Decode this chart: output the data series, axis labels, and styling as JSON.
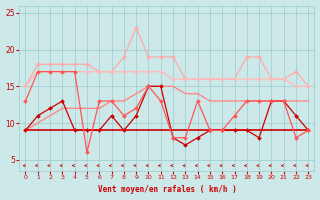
{
  "x": [
    0,
    1,
    2,
    3,
    4,
    5,
    6,
    7,
    8,
    9,
    10,
    11,
    12,
    13,
    14,
    15,
    16,
    17,
    18,
    19,
    20,
    21,
    22,
    23
  ],
  "series": [
    {
      "y": [
        15,
        18,
        18,
        18,
        18,
        18,
        17,
        17,
        19,
        23,
        19,
        19,
        19,
        16,
        16,
        16,
        16,
        16,
        19,
        19,
        16,
        16,
        17,
        15
      ],
      "color": "#ffaaaa",
      "lw": 0.9,
      "marker": "D",
      "ms": 2.0
    },
    {
      "y": [
        15,
        17,
        17,
        17,
        17,
        17,
        17,
        17,
        17,
        17,
        17,
        17,
        16,
        16,
        16,
        16,
        16,
        16,
        16,
        16,
        16,
        16,
        15,
        15
      ],
      "color": "#ffbbbb",
      "lw": 0.9,
      "marker": "D",
      "ms": 2.0
    },
    {
      "y": [
        9,
        10,
        11,
        12,
        12,
        12,
        12,
        13,
        13,
        14,
        15,
        15,
        15,
        14,
        14,
        13,
        13,
        13,
        13,
        13,
        13,
        13,
        13,
        13
      ],
      "color": "#ff8888",
      "lw": 1.0,
      "marker": null,
      "ms": 0
    },
    {
      "y": [
        9,
        9,
        9,
        9,
        9,
        9,
        9,
        9,
        9,
        9,
        9,
        9,
        9,
        9,
        9,
        9,
        9,
        9,
        9,
        9,
        9,
        9,
        9,
        9
      ],
      "color": "#cc0000",
      "lw": 1.2,
      "marker": null,
      "ms": 0
    },
    {
      "y": [
        9,
        11,
        12,
        13,
        9,
        9,
        9,
        11,
        9,
        11,
        15,
        15,
        8,
        7,
        8,
        9,
        9,
        9,
        9,
        8,
        13,
        13,
        11,
        9
      ],
      "color": "#cc0000",
      "lw": 0.9,
      "marker": "D",
      "ms": 2.0
    },
    {
      "y": [
        13,
        17,
        17,
        17,
        17,
        6,
        13,
        13,
        11,
        12,
        15,
        13,
        8,
        8,
        13,
        9,
        9,
        11,
        13,
        13,
        13,
        13,
        8,
        9
      ],
      "color": "#ff5555",
      "lw": 0.9,
      "marker": "D",
      "ms": 2.0
    }
  ],
  "xlabel": "Vent moyen/en rafales ( km/h )",
  "xlim": [
    -0.5,
    23.5
  ],
  "ylim": [
    3.5,
    26
  ],
  "yticks": [
    5,
    10,
    15,
    20,
    25
  ],
  "xticks": [
    0,
    1,
    2,
    3,
    4,
    5,
    6,
    7,
    8,
    9,
    10,
    11,
    12,
    13,
    14,
    15,
    16,
    17,
    18,
    19,
    20,
    21,
    22,
    23
  ],
  "bg_color": "#cce8e8",
  "grid_color": "#99cccc",
  "tick_color": "#cc0000",
  "label_color": "#cc0000",
  "figsize": [
    3.2,
    2.0
  ],
  "dpi": 100
}
